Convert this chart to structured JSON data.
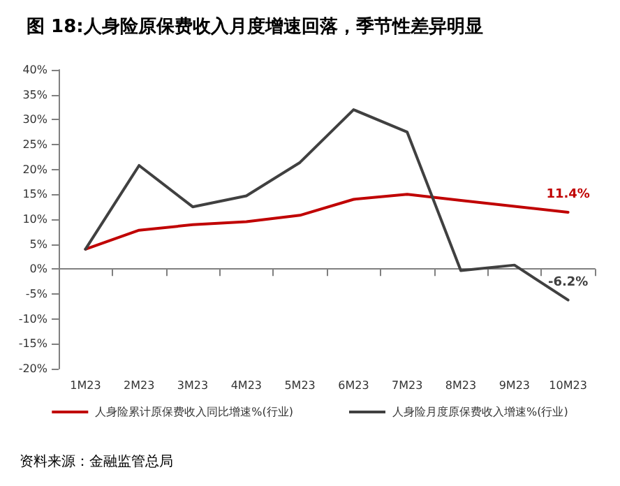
{
  "chart_data": {
    "type": "line",
    "title": "图 18:人身险原保费收入月度增速回落，季节性差异明显",
    "categories": [
      "1M23",
      "2M23",
      "3M23",
      "4M23",
      "5M23",
      "6M23",
      "7M23",
      "8M23",
      "9M23",
      "10M23"
    ],
    "series": [
      {
        "name": "人身险累计原保费收入同比增速%(行业)",
        "color": "#c00000",
        "values": [
          4,
          7.8,
          8.9,
          9.5,
          10.8,
          14,
          15,
          13.8,
          12.6,
          11.4
        ],
        "value_labels": [
          null,
          null,
          null,
          null,
          null,
          null,
          null,
          null,
          null,
          "11.4%"
        ]
      },
      {
        "name": "人身险月度原保费收入增速%(行业)",
        "color": "#404040",
        "values": [
          4,
          20.8,
          12.5,
          14.7,
          21.4,
          32,
          27.5,
          -0.3,
          0.8,
          -6.2
        ],
        "value_labels": [
          null,
          null,
          null,
          null,
          null,
          null,
          null,
          null,
          null,
          "-6.2%"
        ]
      }
    ],
    "ylim": [
      -20,
      40
    ],
    "yticks": [
      {
        "value": -20,
        "label": "-20%"
      },
      {
        "value": -15,
        "label": "-15%"
      },
      {
        "value": -10,
        "label": "-10%"
      },
      {
        "value": -5,
        "label": "-5%"
      },
      {
        "value": 0,
        "label": "0%"
      },
      {
        "value": 5,
        "label": "5%"
      },
      {
        "value": 10,
        "label": "10%"
      },
      {
        "value": 15,
        "label": "15%"
      },
      {
        "value": 20,
        "label": "20%"
      },
      {
        "value": 25,
        "label": "25%"
      },
      {
        "value": 30,
        "label": "30%"
      },
      {
        "value": 35,
        "label": "35%"
      },
      {
        "value": 40,
        "label": "40%"
      }
    ],
    "legend": "bottom",
    "marker": "none",
    "line_style": "solid",
    "annotations": [
      "资料来源：金融监管总局"
    ]
  }
}
